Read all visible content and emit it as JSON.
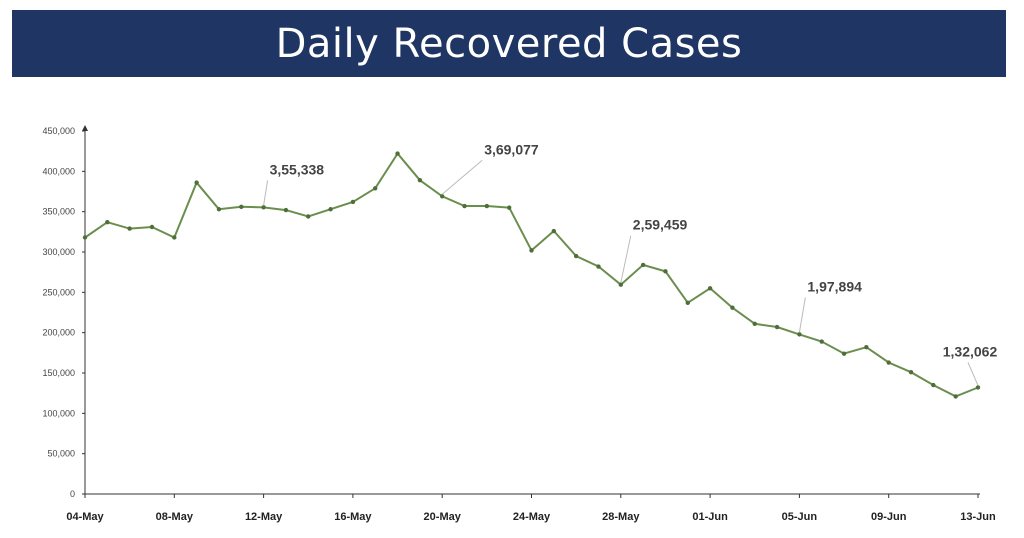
{
  "header": {
    "title": "Daily Recovered Cases",
    "background": "#1f3564"
  },
  "chart_data": {
    "type": "line",
    "title": "Daily Recovered Cases",
    "xlabel": "",
    "ylabel": "",
    "x_ticks": [
      "04-May",
      "08-May",
      "12-May",
      "16-May",
      "20-May",
      "24-May",
      "28-May",
      "01-Jun",
      "05-Jun",
      "09-Jun",
      "13-Jun"
    ],
    "y_ticks": [
      "0",
      "50,000",
      "100,000",
      "150,000",
      "200,000",
      "250,000",
      "300,000",
      "350,000",
      "400,000",
      "450,000"
    ],
    "ylim": [
      0,
      450000
    ],
    "x": [
      "04-May",
      "05-May",
      "06-May",
      "07-May",
      "08-May",
      "09-May",
      "10-May",
      "11-May",
      "12-May",
      "13-May",
      "14-May",
      "15-May",
      "16-May",
      "17-May",
      "18-May",
      "19-May",
      "20-May",
      "21-May",
      "22-May",
      "23-May",
      "24-May",
      "25-May",
      "26-May",
      "27-May",
      "28-May",
      "29-May",
      "30-May",
      "31-May",
      "01-Jun",
      "02-Jun",
      "03-Jun",
      "04-Jun",
      "05-Jun",
      "06-Jun",
      "07-Jun",
      "08-Jun",
      "09-Jun",
      "10-Jun",
      "11-Jun",
      "12-Jun",
      "13-Jun"
    ],
    "series": [
      {
        "name": "",
        "color": "#6b8e4e",
        "values": [
          318000,
          337000,
          329000,
          331000,
          318000,
          386000,
          353000,
          356000,
          355338,
          352000,
          344000,
          353000,
          362000,
          379000,
          422000,
          389000,
          369077,
          357000,
          357000,
          355000,
          302000,
          326000,
          295000,
          282000,
          259459,
          284000,
          276000,
          237000,
          255000,
          231000,
          211000,
          207000,
          197894,
          189000,
          174000,
          182000,
          163000,
          151000,
          135000,
          121000,
          132062
        ]
      }
    ],
    "annotations": [
      {
        "x": "12-May",
        "value": 355338,
        "text": "3,55,338"
      },
      {
        "x": "20-May",
        "value": 369077,
        "text": "3,69,077"
      },
      {
        "x": "28-May",
        "value": 259459,
        "text": "2,59,459"
      },
      {
        "x": "05-Jun",
        "value": 197894,
        "text": "1,97,894"
      },
      {
        "x": "13-Jun",
        "value": 132062,
        "text": "1,32,062"
      }
    ],
    "grid": false,
    "legend": "none"
  }
}
